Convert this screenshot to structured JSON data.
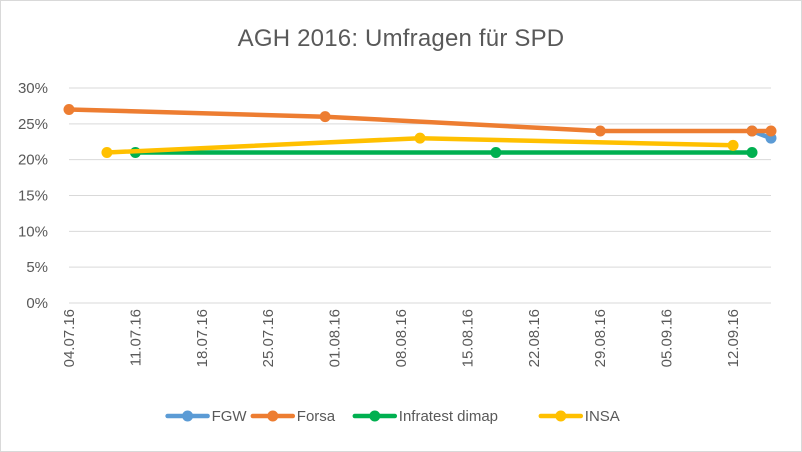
{
  "chart_data": {
    "type": "line",
    "title": "AGH 2016: Umfragen für SPD",
    "xlabel": "",
    "ylabel": "",
    "x_ticks": [
      "04.07.16",
      "11.07.16",
      "18.07.16",
      "25.07.16",
      "01.08.16",
      "08.08.16",
      "15.08.16",
      "22.08.16",
      "29.08.16",
      "05.09.16",
      "12.09.16"
    ],
    "y_ticks": [
      "0%",
      "5%",
      "10%",
      "15%",
      "20%",
      "25%",
      "30%"
    ],
    "xlim": [
      "04.07.16",
      "16.09.16"
    ],
    "ylim": [
      0,
      30
    ],
    "grid": "horizontal",
    "legend_position": "bottom",
    "series": [
      {
        "name": "FGW",
        "color": "#5B9BD5",
        "points": [
          {
            "x": "14.09.16",
            "y": 24
          },
          {
            "x": "16.09.16",
            "y": 23
          }
        ]
      },
      {
        "name": "Forsa",
        "color": "#ED7D31",
        "points": [
          {
            "x": "04.07.16",
            "y": 27
          },
          {
            "x": "31.07.16",
            "y": 26
          },
          {
            "x": "29.08.16",
            "y": 24
          },
          {
            "x": "14.09.16",
            "y": 24
          },
          {
            "x": "16.09.16",
            "y": 24
          }
        ]
      },
      {
        "name": "Infratest dimap",
        "color": "#00B050",
        "points": [
          {
            "x": "11.07.16",
            "y": 21
          },
          {
            "x": "18.08.16",
            "y": 21
          },
          {
            "x": "14.09.16",
            "y": 21
          }
        ]
      },
      {
        "name": "INSA",
        "color": "#FFC000",
        "points": [
          {
            "x": "08.07.16",
            "y": 21
          },
          {
            "x": "10.08.16",
            "y": 23
          },
          {
            "x": "12.09.16",
            "y": 22
          }
        ]
      }
    ]
  }
}
